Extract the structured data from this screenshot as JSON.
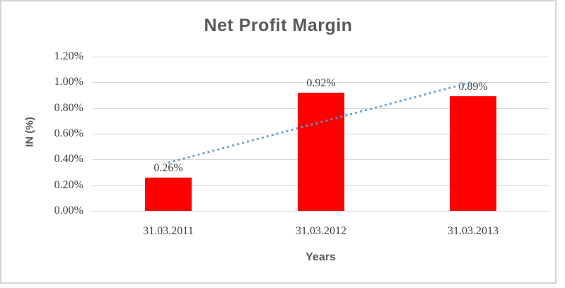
{
  "chart_data": {
    "type": "bar",
    "title": "Net Profit Margin",
    "xlabel": "Years",
    "ylabel": "IN (%)",
    "categories": [
      "31.03.2011",
      "31.03.2012",
      "31.03.2013"
    ],
    "values": [
      0.26,
      0.92,
      0.89
    ],
    "data_labels": [
      "0.26%",
      "0.92%",
      "0.89%"
    ],
    "yticks": [
      "0.00%",
      "0.20%",
      "0.40%",
      "0.60%",
      "0.80%",
      "1.00%",
      "1.20%"
    ],
    "ytick_values": [
      0.0,
      0.2,
      0.4,
      0.6,
      0.8,
      1.0,
      1.2
    ],
    "ylim": [
      0,
      1.2
    ],
    "grid": true,
    "legend": "none",
    "series_name": "Net Profit Margin",
    "trendline": {
      "type": "linear",
      "style": "dotted",
      "from_value": 0.375,
      "to_value": 1.005
    }
  },
  "colors": {
    "bar": "#ff0000",
    "trendline": "#5b9bd5",
    "gridline": "#d9d9d9",
    "title_text": "#595959",
    "axis_title_text": "#595959",
    "tick_text": "#404040",
    "frame_border": "#d4d4d4",
    "background": "#ffffff"
  }
}
